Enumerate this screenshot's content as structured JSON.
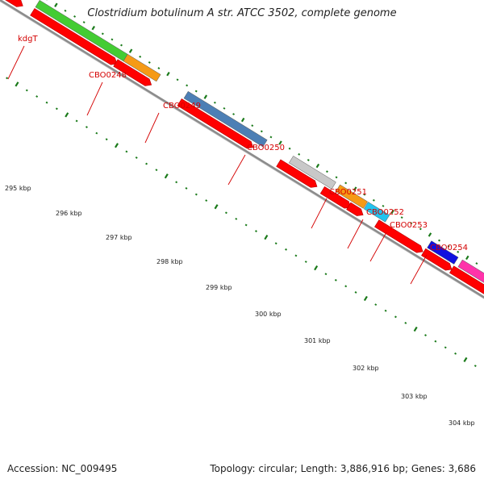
{
  "title": "Clostridium botulinum A str. ATCC 3502, complete genome",
  "footer": {
    "accession": "Accession: NC_009495",
    "summary": "Topology: circular; Length: 3,886,916 bp; Genes: 3,686"
  },
  "colors": {
    "cds": "#ff0000",
    "backbone": "#8c8c8c",
    "tick": "#1a7a1a",
    "label": "#d40000"
  },
  "genes": [
    {
      "name": "kdgT",
      "color": "#ff0000",
      "style": "cds-only"
    },
    {
      "name": "CBO0248",
      "color": "#44cc33",
      "style": "cds+feature"
    },
    {
      "name": "CBO0249",
      "color": "#f59a16",
      "style": "cds+feature"
    },
    {
      "name": "CBO0250",
      "color": "#4d7fb5",
      "style": "cds+feature"
    },
    {
      "name": "CBO0251",
      "color": "#c8c8c8",
      "style": "cds+feature"
    },
    {
      "name": "CBO0252",
      "color": "#f59a16",
      "style": "cds+feature"
    },
    {
      "name": "CBO0253",
      "color": "#22c4ef",
      "style": "cds+feature"
    },
    {
      "name": "CBO0254",
      "color": "#1010e0",
      "style": "cds+feature"
    },
    {
      "name": "",
      "color": "#ff33aa",
      "style": "cds+feature"
    }
  ],
  "scale_labels": [
    "295 kbp",
    "296 kbp",
    "297 kbp",
    "298 kbp",
    "299 kbp",
    "300 kbp",
    "301 kbp",
    "302 kbp",
    "303 kbp",
    "304 kbp"
  ]
}
